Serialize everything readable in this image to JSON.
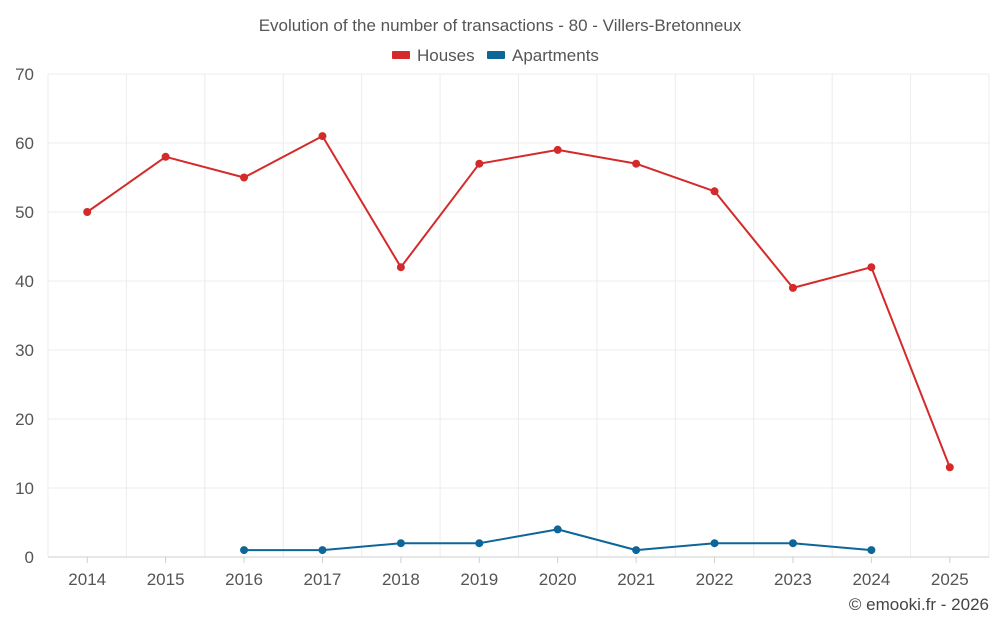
{
  "chart_data": {
    "type": "line",
    "title": "Evolution of the number of transactions - 80 - Villers-Bretonneux",
    "xlabel": "",
    "ylabel": "",
    "x": [
      "2014",
      "2015",
      "2016",
      "2017",
      "2018",
      "2019",
      "2020",
      "2021",
      "2022",
      "2023",
      "2024",
      "2025"
    ],
    "ylim": [
      0,
      70
    ],
    "yticks": [
      "0",
      "10",
      "20",
      "30",
      "40",
      "50",
      "60",
      "70"
    ],
    "grid": true,
    "legend_position": "top-center",
    "series": [
      {
        "name": "Houses",
        "color": "#d42a2a",
        "values": [
          50,
          58,
          55,
          61,
          42,
          57,
          59,
          57,
          53,
          39,
          42,
          13
        ]
      },
      {
        "name": "Apartments",
        "color": "#0e6698",
        "values": [
          null,
          null,
          1,
          1,
          2,
          2,
          4,
          1,
          2,
          2,
          1,
          null
        ]
      }
    ]
  },
  "credit": "© emooki.fr - 2026"
}
